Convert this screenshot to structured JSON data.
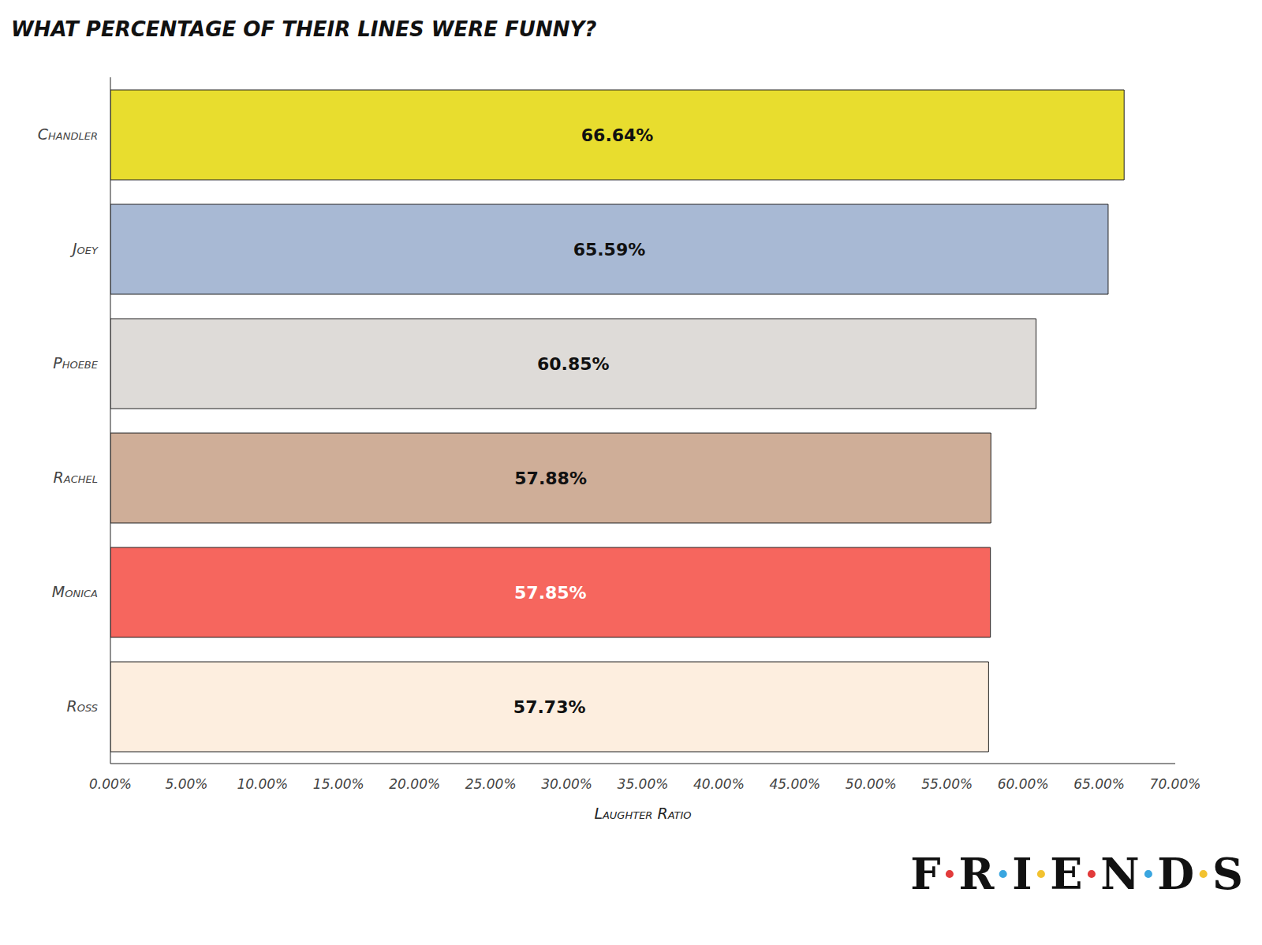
{
  "chart_data": {
    "type": "bar",
    "orientation": "horizontal",
    "title": "WHAT PERCENTAGE OF THEIR LINES WERE FUNNY?",
    "x_label": "Laughter Ratio",
    "annotation": "F·R·I·E·N·D·S",
    "categories": [
      "Chandler",
      "Joey",
      "Phoebe",
      "Rachel",
      "Monica",
      "Ross"
    ],
    "values": [
      66.64,
      65.59,
      60.85,
      57.88,
      57.85,
      57.73
    ],
    "value_labels": [
      "66.64%",
      "65.59%",
      "60.85%",
      "57.88%",
      "57.85%",
      "57.73%"
    ],
    "colors": [
      "#e8dd2e",
      "#a8b9d4",
      "#dedbd8",
      "#cfae98",
      "#f6665e",
      "#fdeedf"
    ],
    "xlim": [
      0,
      70
    ],
    "xticks": [
      {
        "value": 0,
        "label": "0.00%"
      },
      {
        "value": 5,
        "label": "5.00%"
      },
      {
        "value": 10,
        "label": "10.00%"
      },
      {
        "value": 15,
        "label": "15.00%"
      },
      {
        "value": 20,
        "label": "20.00%"
      },
      {
        "value": 25,
        "label": "25.00%"
      },
      {
        "value": 30,
        "label": "30.00%"
      },
      {
        "value": 35,
        "label": "35.00%"
      },
      {
        "value": 40,
        "label": "40.00%"
      },
      {
        "value": 45,
        "label": "45.00%"
      },
      {
        "value": 50,
        "label": "50.00%"
      },
      {
        "value": 55,
        "label": "55.00%"
      },
      {
        "value": 60,
        "label": "60.00%"
      },
      {
        "value": 65,
        "label": "65.00%"
      },
      {
        "value": 70,
        "label": "70.00%"
      }
    ],
    "grid": false,
    "data_labels": true
  }
}
